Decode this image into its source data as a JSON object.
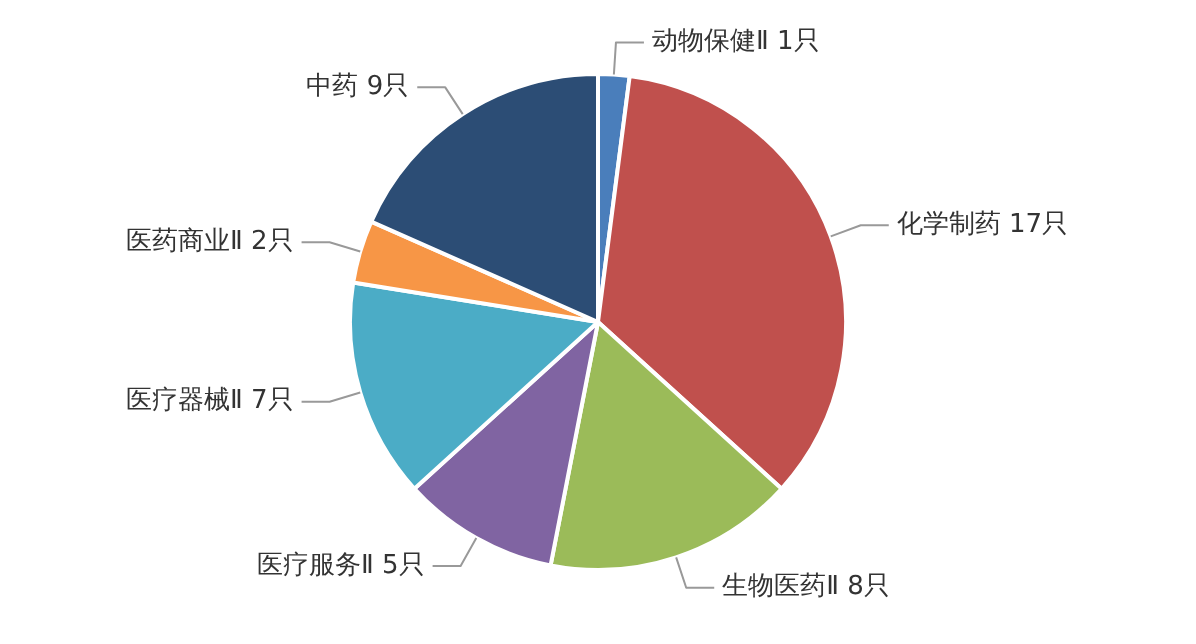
{
  "chart_data": {
    "type": "pie",
    "categories": [
      "动物保健Ⅱ",
      "化学制药",
      "生物医药Ⅱ",
      "医疗服务Ⅱ",
      "医疗器械Ⅱ",
      "医药商业Ⅱ",
      "中药"
    ],
    "values": [
      1,
      17,
      8,
      5,
      7,
      2,
      9
    ],
    "value_labels": [
      "1只",
      "17只",
      "8只",
      "5只",
      "7只",
      "2只",
      "9只"
    ],
    "colors": [
      "#4a7ebb",
      "#c0504d",
      "#9bbb59",
      "#8064a2",
      "#4bacc6",
      "#f79646",
      "#2c4d75"
    ]
  }
}
